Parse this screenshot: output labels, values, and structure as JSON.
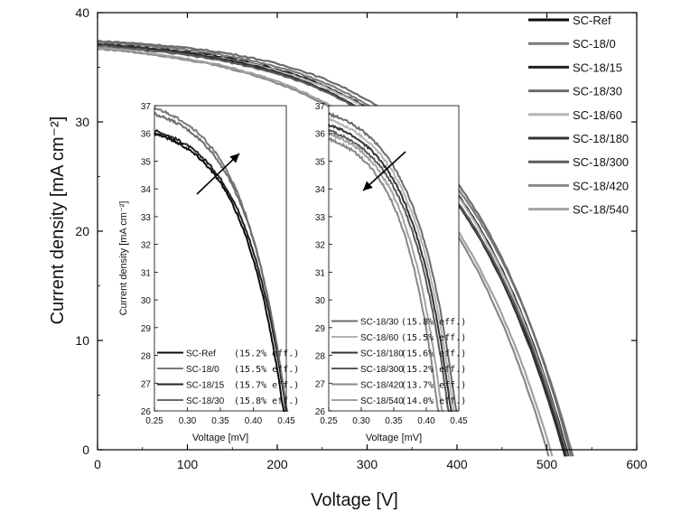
{
  "chart_data": [
    {
      "type": "line",
      "id": "main",
      "xlabel": "Voltage [V]",
      "ylabel": "Current density [mA cm⁻²]",
      "xlim": [
        0,
        600
      ],
      "ylim": [
        0,
        40
      ],
      "xticks": [
        0,
        100,
        200,
        300,
        400,
        500,
        600
      ],
      "yticks": [
        0,
        10,
        20,
        30,
        40
      ],
      "legend_position": "top-right",
      "series": [
        {
          "name": "SC-Ref",
          "color": "#0a0a0a",
          "isc": 37.0,
          "voc": 519,
          "knee": 0.25
        },
        {
          "name": "SC-18/0",
          "color": "#7a7a7a",
          "isc": 37.3,
          "voc": 527,
          "knee": 0.24
        },
        {
          "name": "SC-18/15",
          "color": "#222222",
          "isc": 37.1,
          "voc": 522,
          "knee": 0.24
        },
        {
          "name": "SC-18/30",
          "color": "#6c6c6c",
          "isc": 37.4,
          "voc": 525,
          "knee": 0.23
        },
        {
          "name": "SC-18/60",
          "color": "#b4b4b4",
          "isc": 37.0,
          "voc": 521,
          "knee": 0.24
        },
        {
          "name": "SC-18/180",
          "color": "#333333",
          "isc": 37.1,
          "voc": 518,
          "knee": 0.25
        },
        {
          "name": "SC-18/300",
          "color": "#5a5a5a",
          "isc": 36.9,
          "voc": 521,
          "knee": 0.25
        },
        {
          "name": "SC-18/420",
          "color": "#888888",
          "isc": 36.7,
          "voc": 500,
          "knee": 0.27
        },
        {
          "name": "SC-18/540",
          "color": "#a2a2a2",
          "isc": 36.8,
          "voc": 504,
          "knee": 0.27
        }
      ]
    },
    {
      "type": "line",
      "id": "inset-left",
      "xlabel": "Voltage [mV]",
      "ylabel": "Current density [mA cm⁻²]",
      "xlim": [
        0.25,
        0.45
      ],
      "ylim": [
        26,
        37
      ],
      "xticks": [
        "0.25",
        "0.30",
        "0.35",
        "0.40",
        "0.45"
      ],
      "yticks": [
        "26",
        "27",
        "28",
        "29",
        "30",
        "31",
        "32",
        "33",
        "34",
        "35",
        "36",
        "37"
      ],
      "arrow": "up-right",
      "series": [
        {
          "name": "SC-Ref",
          "label": "(15.2% eff.)",
          "color": "#0a0a0a",
          "j0": 36.0,
          "xend": 0.448
        },
        {
          "name": "SC-18/0",
          "label": "(15.5% eff.)",
          "color": "#7a7a7a",
          "j0": 36.9,
          "xend": 0.452
        },
        {
          "name": "SC-18/15",
          "label": "(15.7% eff.)",
          "color": "#222222",
          "j0": 36.1,
          "xend": 0.452
        },
        {
          "name": "SC-18/30",
          "label": "(15.8% eff.)",
          "color": "#6c6c6c",
          "j0": 36.7,
          "xend": 0.453
        }
      ]
    },
    {
      "type": "line",
      "id": "inset-right",
      "xlabel": "Voltage [mV]",
      "ylabel": "",
      "xlim": [
        0.25,
        0.45
      ],
      "ylim": [
        26,
        37
      ],
      "xticks": [
        "0.25",
        "0.30",
        "0.35",
        "0.40",
        "0.45"
      ],
      "yticks": [
        "26",
        "27",
        "28",
        "29",
        "30",
        "31",
        "32",
        "33",
        "34",
        "35",
        "36",
        "37"
      ],
      "arrow": "down-left",
      "series": [
        {
          "name": "SC-18/30",
          "label": "(15.8% eff.)",
          "color": "#6c6c6c",
          "j0": 36.7,
          "xend": 0.448
        },
        {
          "name": "SC-18/60",
          "label": "(15.5% eff.)",
          "color": "#b4b4b4",
          "j0": 36.5,
          "xend": 0.444
        },
        {
          "name": "SC-18/180",
          "label": "(15.6% eff.)",
          "color": "#333333",
          "j0": 36.3,
          "xend": 0.44
        },
        {
          "name": "SC-18/300",
          "label": "(15.2% eff.)",
          "color": "#5a5a5a",
          "j0": 36.1,
          "xend": 0.436
        },
        {
          "name": "SC-18/420",
          "label": "(13.7% eff.)",
          "color": "#888888",
          "j0": 35.8,
          "xend": 0.42
        },
        {
          "name": "SC-18/540",
          "label": "(14.0% eff.)",
          "color": "#a2a2a2",
          "j0": 36.0,
          "xend": 0.426
        }
      ]
    }
  ]
}
